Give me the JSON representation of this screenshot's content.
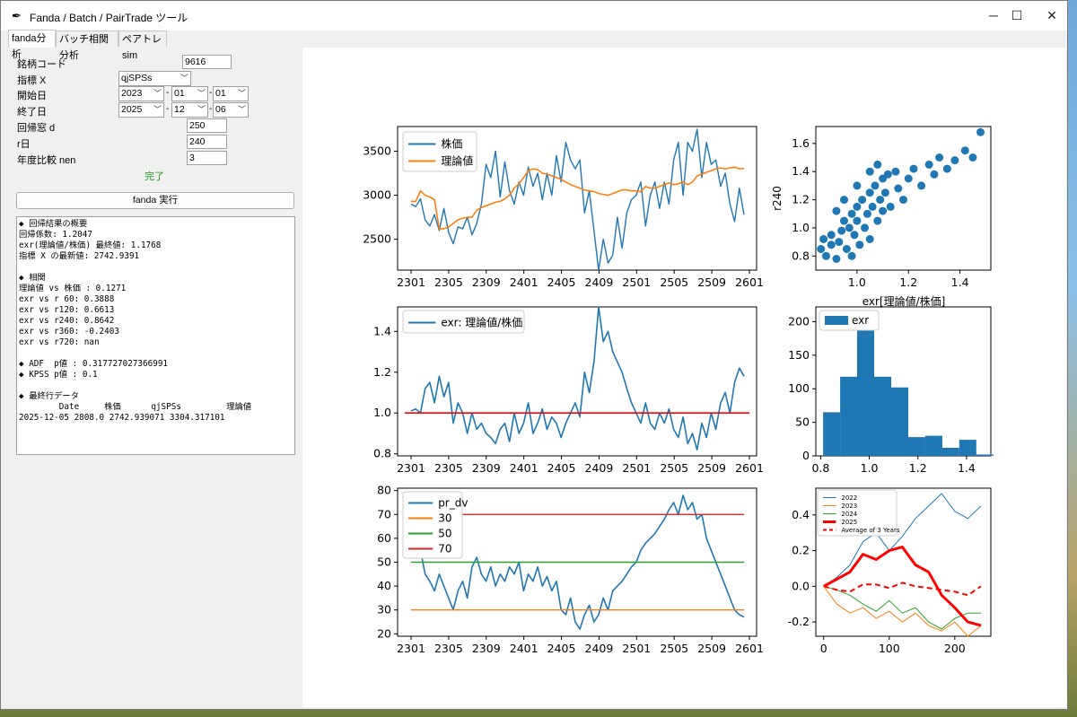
{
  "window": {
    "title": "Fanda / Batch / PairTrade ツール",
    "controls": {
      "minimize": "─",
      "maximize": "☐",
      "close": "✕"
    }
  },
  "tabs": [
    {
      "label": "fanda分析",
      "active": true
    },
    {
      "label": "バッチ相関分析",
      "active": false
    },
    {
      "label": "ペアトレ sim",
      "active": false
    }
  ],
  "form": {
    "code": {
      "label": "銘柄コード",
      "value": "9616"
    },
    "indicator": {
      "label": "指標 X",
      "value": "qjSPSs"
    },
    "start": {
      "label": "開始日",
      "year": "2023",
      "month": "01",
      "day": "01"
    },
    "end": {
      "label": "終了日",
      "year": "2025",
      "month": "12",
      "day": "06"
    },
    "window": {
      "label": "回帰窓 d",
      "value": "250"
    },
    "rday": {
      "label": "r日",
      "value": "240"
    },
    "nen": {
      "label": "年度比較 nen",
      "value": "3"
    },
    "status": "完了",
    "run_label": "fanda 実行",
    "sep": "-"
  },
  "output": {
    "lines": [
      "◆ 回帰結果の概要",
      "回帰係数: 1.2047",
      "exr(理論値/株価) 最終値: 1.1768",
      "指標 X の最新値: 2742.9391",
      "",
      "◆ 相関",
      "理論値 vs 株価 : 0.1271",
      "exr vs r 60: 0.3888",
      "exr vs r120: 0.6613",
      "exr vs r240: 0.8642",
      "exr vs r360: -0.2403",
      "exr vs r720: nan",
      "",
      "◆ ADF  p値 : 0.317727027366991",
      "◆ KPSS p値 : 0.1",
      "",
      "◆ 最終行データ",
      "        Date     株価      qjSPSs         理論値",
      "2025-12-05 2808.0 2742.939071 3304.317101"
    ]
  },
  "colors": {
    "blue": "#1f77b4",
    "orange": "#ff7f0e",
    "green": "#2ca02c",
    "red": "#d62728",
    "pure_red": "#ff0000"
  },
  "chart_data": [
    {
      "type": "line",
      "x_ticks": [
        "2301",
        "2305",
        "2309",
        "2401",
        "2405",
        "2409",
        "2501",
        "2505",
        "2509",
        "2601"
      ],
      "y_ticks": [
        "2500",
        "3000",
        "3500"
      ],
      "ylim": [
        2150,
        3780
      ],
      "legend_position": "top-left",
      "series": [
        {
          "name": "株価",
          "color": "#1f77b4",
          "values": [
            2900,
            2870,
            2960,
            2720,
            2650,
            2780,
            2600,
            2850,
            2580,
            2450,
            2640,
            2620,
            2750,
            2550,
            2680,
            2900,
            3350,
            3200,
            3500,
            2980,
            3380,
            3050,
            2900,
            3150,
            3000,
            3320,
            3100,
            3250,
            2950,
            3250,
            3000,
            3450,
            3150,
            3600,
            3400,
            3300,
            3400,
            2800,
            3050,
            2600,
            2150,
            2500,
            2230,
            2320,
            2750,
            2400,
            2800,
            2950,
            3000,
            3150,
            2650,
            3000,
            3150,
            2850,
            3150,
            2900,
            3400,
            3600,
            3000,
            3600,
            3500,
            3750,
            3200,
            3600,
            3350,
            3400,
            3100,
            3250,
            2900,
            2700,
            3080,
            2780
          ]
        },
        {
          "name": "理論値",
          "color": "#ff7f0e",
          "values": [
            2930,
            2930,
            3050,
            3000,
            2980,
            2950,
            2620,
            2620,
            2640,
            2680,
            2720,
            2740,
            2750,
            2750,
            2830,
            2860,
            2880,
            2900,
            2920,
            2930,
            2960,
            3000,
            3080,
            3130,
            3200,
            3280,
            3300,
            3290,
            3250,
            3240,
            3220,
            3200,
            3180,
            3150,
            3120,
            3100,
            3080,
            3060,
            3050,
            3040,
            3020,
            3010,
            3000,
            3020,
            3040,
            3060,
            3060,
            3050,
            3050,
            3040,
            3100,
            3080,
            3080,
            3100,
            3120,
            3140,
            3120,
            3130,
            3150,
            3120,
            3150,
            3220,
            3240,
            3260,
            3280,
            3300,
            3310,
            3300,
            3310,
            3320,
            3300,
            3304
          ]
        }
      ]
    },
    {
      "type": "scatter",
      "xlabel": "exr[理論値/株価]",
      "ylabel": "r240",
      "x_ticks": [
        "1.0",
        "1.2",
        "1.4"
      ],
      "y_ticks": [
        "0.8",
        "1.0",
        "1.2",
        "1.4",
        "1.6"
      ],
      "xlim": [
        0.84,
        1.52
      ],
      "ylim": [
        0.7,
        1.72
      ],
      "color": "#1f77b4",
      "points": [
        [
          0.86,
          0.85
        ],
        [
          0.87,
          0.92
        ],
        [
          0.88,
          0.8
        ],
        [
          0.9,
          0.88
        ],
        [
          0.9,
          0.95
        ],
        [
          0.92,
          0.78
        ],
        [
          0.93,
          0.9
        ],
        [
          0.94,
          0.98
        ],
        [
          0.95,
          1.05
        ],
        [
          0.96,
          0.85
        ],
        [
          0.97,
          1.0
        ],
        [
          0.98,
          1.1
        ],
        [
          0.99,
          0.95
        ],
        [
          1.0,
          1.05
        ],
        [
          1.0,
          1.15
        ],
        [
          1.01,
          0.88
        ],
        [
          1.02,
          1.2
        ],
        [
          1.03,
          1.0
        ],
        [
          1.04,
          1.1
        ],
        [
          1.05,
          1.25
        ],
        [
          1.05,
          0.92
        ],
        [
          1.06,
          1.15
        ],
        [
          1.07,
          1.3
        ],
        [
          1.08,
          1.05
        ],
        [
          1.09,
          1.2
        ],
        [
          1.1,
          1.35
        ],
        [
          1.1,
          1.12
        ],
        [
          1.11,
          1.25
        ],
        [
          1.12,
          1.38
        ],
        [
          1.13,
          1.15
        ],
        [
          1.15,
          1.4
        ],
        [
          1.16,
          1.28
        ],
        [
          1.18,
          1.2
        ],
        [
          1.2,
          1.35
        ],
        [
          1.22,
          1.42
        ],
        [
          1.25,
          1.3
        ],
        [
          1.28,
          1.45
        ],
        [
          1.3,
          1.38
        ],
        [
          1.32,
          1.5
        ],
        [
          1.35,
          1.42
        ],
        [
          1.38,
          1.48
        ],
        [
          1.42,
          1.55
        ],
        [
          1.45,
          1.5
        ],
        [
          1.48,
          1.68
        ],
        [
          0.95,
          1.2
        ],
        [
          1.0,
          1.3
        ],
        [
          1.05,
          1.4
        ],
        [
          0.92,
          1.12
        ],
        [
          0.98,
          0.8
        ],
        [
          1.08,
          1.45
        ]
      ]
    },
    {
      "type": "line",
      "legend_position": "top-left",
      "x_ticks": [
        "2301",
        "2305",
        "2309",
        "2401",
        "2405",
        "2409",
        "2501",
        "2505",
        "2509",
        "2601"
      ],
      "y_ticks": [
        "0.8",
        "1.0",
        "1.2",
        "1.4"
      ],
      "ylim": [
        0.79,
        1.52
      ],
      "series": [
        {
          "name": "exr: 理論値/株価",
          "color": "#1f77b4",
          "values": [
            1.01,
            1.02,
            1.0,
            1.12,
            1.15,
            1.05,
            1.18,
            1.08,
            1.15,
            0.95,
            1.05,
            1.0,
            0.9,
            1.0,
            0.92,
            0.95,
            0.9,
            0.88,
            0.85,
            0.92,
            0.95,
            0.86,
            1.0,
            0.9,
            0.95,
            1.05,
            0.9,
            0.95,
            1.02,
            0.92,
            0.98,
            0.95,
            0.88,
            0.95,
            1.0,
            1.05,
            0.98,
            1.2,
            1.1,
            1.25,
            1.52,
            1.35,
            1.4,
            1.3,
            1.25,
            1.2,
            1.12,
            1.05,
            1.0,
            0.95,
            1.05,
            0.95,
            0.92,
            1.0,
            0.95,
            1.02,
            0.92,
            0.88,
            0.98,
            0.85,
            0.9,
            0.82,
            0.95,
            0.88,
            1.0,
            0.92,
            1.05,
            1.1,
            1.0,
            1.15,
            1.22,
            1.18
          ]
        },
        {
          "name": "",
          "color": "#ff0000",
          "values": [
            1.0,
            1.0
          ]
        }
      ]
    },
    {
      "type": "bar",
      "x_ticks": [
        "0.8",
        "1.0",
        "1.2",
        "1.4"
      ],
      "y_ticks": [
        "0",
        "50",
        "100",
        "150",
        "200"
      ],
      "xlim": [
        0.78,
        1.5
      ],
      "ylim": [
        0,
        222
      ],
      "legend_position": "top-left",
      "series": [
        {
          "name": "exr",
          "color": "#1f77b4"
        }
      ],
      "bins": [
        [
          0.81,
          0.88,
          65
        ],
        [
          0.88,
          0.95,
          118
        ],
        [
          0.95,
          1.02,
          210
        ],
        [
          1.02,
          1.09,
          118
        ],
        [
          1.09,
          1.16,
          102
        ],
        [
          1.16,
          1.23,
          28
        ],
        [
          1.23,
          1.3,
          30
        ],
        [
          1.3,
          1.37,
          12
        ],
        [
          1.37,
          1.44,
          24
        ],
        [
          1.44,
          1.51,
          2
        ]
      ]
    },
    {
      "type": "line",
      "legend_position": "top-left",
      "x_ticks": [
        "2301",
        "2305",
        "2309",
        "2401",
        "2405",
        "2409",
        "2501",
        "2505",
        "2509",
        "2601"
      ],
      "y_ticks": [
        "20",
        "30",
        "40",
        "50",
        "60",
        "70",
        "80"
      ],
      "ylim": [
        19,
        81
      ],
      "series": [
        {
          "name": "pr_dv",
          "color": "#1f77b4",
          "values": [
            62,
            58,
            55,
            45,
            42,
            38,
            45,
            40,
            35,
            30,
            38,
            42,
            35,
            48,
            52,
            45,
            42,
            48,
            40,
            45,
            42,
            48,
            45,
            50,
            38,
            45,
            42,
            48,
            40,
            44,
            38,
            42,
            30,
            28,
            35,
            25,
            22,
            28,
            32,
            25,
            28,
            35,
            30,
            38,
            40,
            42,
            45,
            48,
            50,
            55,
            58,
            60,
            62,
            65,
            68,
            72,
            75,
            70,
            78,
            72,
            75,
            68,
            70,
            60,
            55,
            50,
            45,
            40,
            35,
            30,
            28,
            27
          ]
        },
        {
          "name": "30",
          "color": "#ff7f0e",
          "values": [
            30,
            30
          ]
        },
        {
          "name": "50",
          "color": "#2ca02c",
          "values": [
            50,
            50
          ]
        },
        {
          "name": "70",
          "color": "#d62728",
          "values": [
            70,
            70
          ]
        }
      ]
    },
    {
      "type": "line",
      "legend_position": "top-left",
      "x_ticks": [
        "0",
        "100",
        "200"
      ],
      "y_ticks": [
        "-0.2",
        "0.0",
        "0.2",
        "0.4"
      ],
      "xlim": [
        -12,
        255
      ],
      "ylim": [
        -0.28,
        0.55
      ],
      "x": [
        0,
        20,
        40,
        60,
        80,
        100,
        120,
        140,
        160,
        180,
        200,
        220,
        240
      ],
      "series": [
        {
          "name": "2022",
          "color": "#1f77b4",
          "values": [
            0.0,
            0.05,
            0.12,
            0.25,
            0.3,
            0.2,
            0.28,
            0.38,
            0.45,
            0.52,
            0.42,
            0.38,
            0.45
          ]
        },
        {
          "name": "2023",
          "color": "#ff7f0e",
          "values": [
            0.0,
            -0.1,
            -0.15,
            -0.12,
            -0.18,
            -0.14,
            -0.2,
            -0.15,
            -0.22,
            -0.25,
            -0.2,
            -0.28,
            -0.22
          ]
        },
        {
          "name": "2024",
          "color": "#2ca02c",
          "values": [
            0.0,
            -0.02,
            -0.05,
            -0.1,
            -0.14,
            -0.08,
            -0.15,
            -0.12,
            -0.2,
            -0.24,
            -0.18,
            -0.15,
            -0.15
          ]
        },
        {
          "name": "2025",
          "color": "#ff0000",
          "values": [
            0.0,
            0.04,
            0.08,
            0.18,
            0.15,
            0.2,
            0.22,
            0.12,
            0.08,
            -0.05,
            -0.12,
            -0.2,
            -0.22
          ]
        },
        {
          "name": "Average of 3 Years",
          "color": "#ff0000",
          "dashed": true,
          "values": [
            0.0,
            -0.02,
            -0.03,
            0.01,
            0.01,
            -0.01,
            0.02,
            0.0,
            -0.01,
            -0.02,
            -0.03,
            -0.05,
            0.0
          ]
        }
      ]
    }
  ]
}
